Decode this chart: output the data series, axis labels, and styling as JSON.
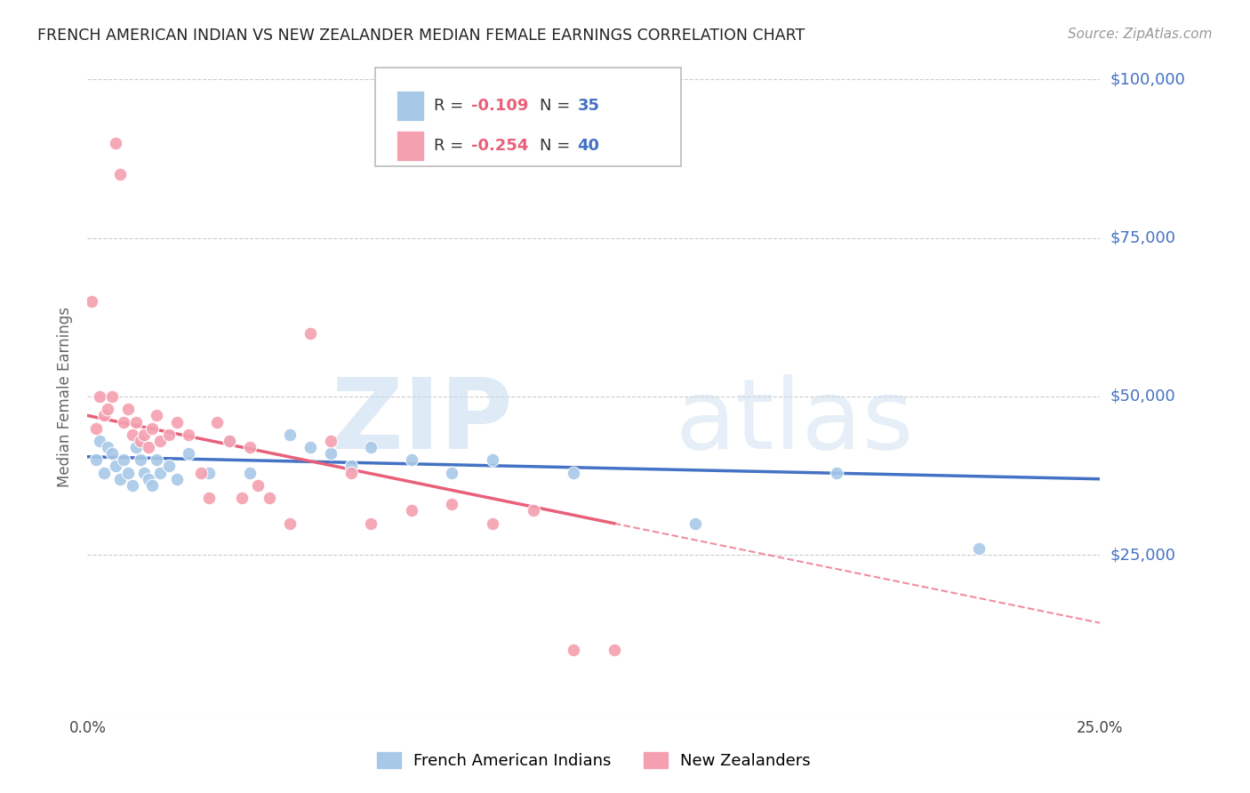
{
  "title": "FRENCH AMERICAN INDIAN VS NEW ZEALANDER MEDIAN FEMALE EARNINGS CORRELATION CHART",
  "source": "Source: ZipAtlas.com",
  "ylabel": "Median Female Earnings",
  "watermark_zip": "ZIP",
  "watermark_atlas": "atlas",
  "xlim": [
    0.0,
    0.25
  ],
  "ylim": [
    0,
    100000
  ],
  "yticks": [
    0,
    25000,
    50000,
    75000,
    100000
  ],
  "ytick_labels": [
    "",
    "$25,000",
    "$50,000",
    "$75,000",
    "$100,000"
  ],
  "xticks": [
    0.0,
    0.05,
    0.1,
    0.15,
    0.2,
    0.25
  ],
  "xtick_labels": [
    "0.0%",
    "",
    "",
    "",
    "",
    "25.0%"
  ],
  "blue_R": -0.109,
  "blue_N": 35,
  "pink_R": -0.254,
  "pink_N": 40,
  "blue_label": "French American Indians",
  "pink_label": "New Zealanders",
  "blue_color": "#A8C8E8",
  "pink_color": "#F4A0B0",
  "blue_line_color": "#4472C4",
  "pink_line_color": "#E8607A",
  "blue_scatter_x": [
    0.002,
    0.003,
    0.004,
    0.005,
    0.006,
    0.007,
    0.008,
    0.009,
    0.01,
    0.011,
    0.012,
    0.013,
    0.014,
    0.015,
    0.016,
    0.017,
    0.018,
    0.02,
    0.022,
    0.025,
    0.03,
    0.035,
    0.04,
    0.05,
    0.055,
    0.06,
    0.065,
    0.07,
    0.08,
    0.09,
    0.1,
    0.12,
    0.15,
    0.185,
    0.22
  ],
  "blue_scatter_y": [
    40000,
    43000,
    38000,
    42000,
    41000,
    39000,
    37000,
    40000,
    38000,
    36000,
    42000,
    40000,
    38000,
    37000,
    36000,
    40000,
    38000,
    39000,
    37000,
    41000,
    38000,
    43000,
    38000,
    44000,
    42000,
    41000,
    39000,
    42000,
    40000,
    38000,
    40000,
    38000,
    30000,
    38000,
    26000
  ],
  "pink_scatter_x": [
    0.001,
    0.002,
    0.003,
    0.004,
    0.005,
    0.006,
    0.007,
    0.008,
    0.009,
    0.01,
    0.011,
    0.012,
    0.013,
    0.014,
    0.015,
    0.016,
    0.017,
    0.018,
    0.02,
    0.022,
    0.025,
    0.028,
    0.03,
    0.032,
    0.035,
    0.038,
    0.04,
    0.042,
    0.045,
    0.05,
    0.055,
    0.06,
    0.065,
    0.07,
    0.08,
    0.09,
    0.1,
    0.11,
    0.12,
    0.13
  ],
  "pink_scatter_y": [
    65000,
    45000,
    50000,
    47000,
    48000,
    50000,
    90000,
    85000,
    46000,
    48000,
    44000,
    46000,
    43000,
    44000,
    42000,
    45000,
    47000,
    43000,
    44000,
    46000,
    44000,
    38000,
    34000,
    46000,
    43000,
    34000,
    42000,
    36000,
    34000,
    30000,
    60000,
    43000,
    38000,
    30000,
    32000,
    33000,
    30000,
    32000,
    10000,
    10000
  ],
  "background_color": "#FFFFFF",
  "grid_color": "#CCCCCC",
  "title_color": "#222222",
  "axis_label_color": "#666666",
  "right_tick_color": "#4472C4"
}
